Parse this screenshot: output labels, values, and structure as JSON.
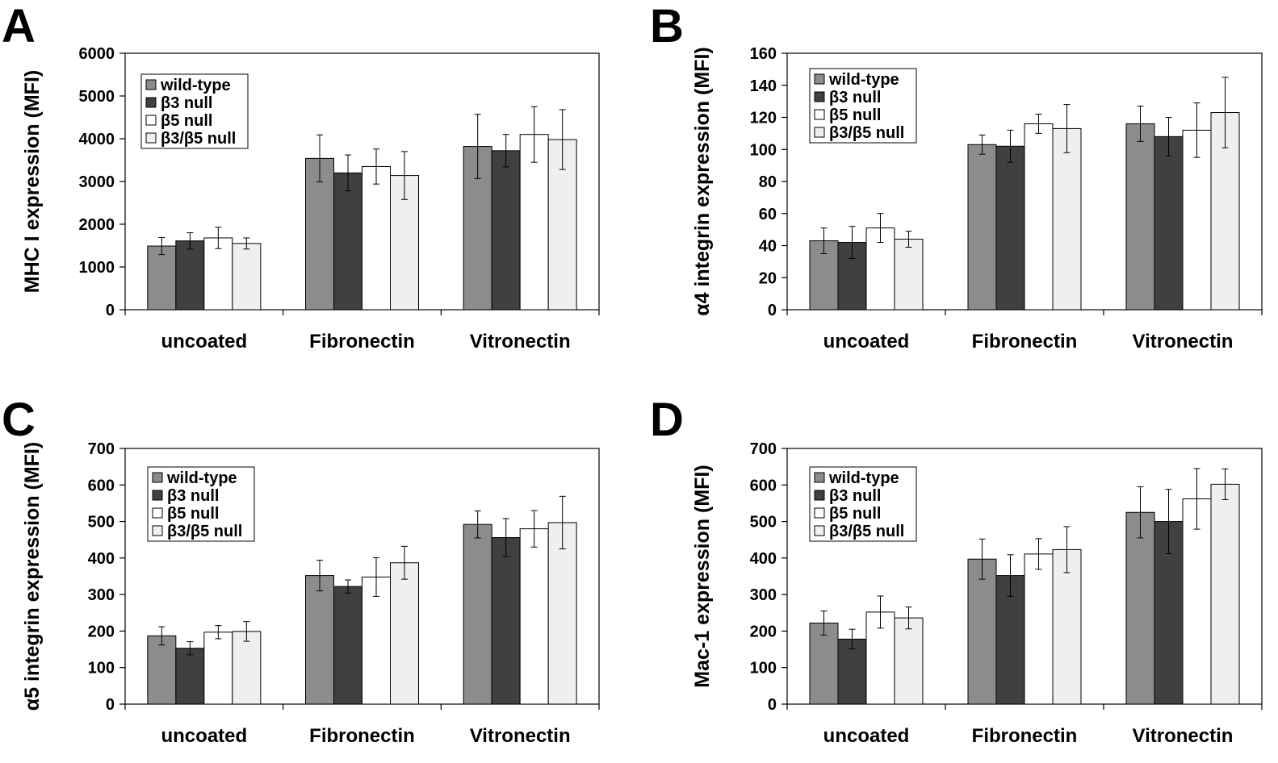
{
  "series_styles": [
    {
      "name": "wild-type",
      "fill": "#8c8c8c"
    },
    {
      "name": "β3 null",
      "fill": "#404040"
    },
    {
      "name": "β5 null",
      "fill": "#ffffff"
    },
    {
      "name": "β3/β5 null",
      "fill": "#efefef"
    }
  ],
  "chart_data": [
    {
      "panel": "A",
      "type": "bar",
      "categories": [
        "uncoated",
        "Fibronectin",
        "Vitronectin"
      ],
      "ylabel": "MHC I expression (MFI)",
      "ylim": [
        0,
        6000
      ],
      "yticks": [
        0,
        1000,
        2000,
        3000,
        4000,
        5000,
        6000
      ],
      "legend_position": "top-left",
      "series": [
        {
          "name": "wild-type",
          "values": [
            1490,
            3540,
            3820
          ],
          "errors": [
            200,
            550,
            750
          ]
        },
        {
          "name": "β3 null",
          "values": [
            1610,
            3200,
            3720
          ],
          "errors": [
            190,
            420,
            380
          ]
        },
        {
          "name": "β5 null",
          "values": [
            1680,
            3350,
            4100
          ],
          "errors": [
            250,
            410,
            650
          ]
        },
        {
          "name": "β3/β5 null",
          "values": [
            1550,
            3140,
            3980
          ],
          "errors": [
            130,
            560,
            700
          ]
        }
      ]
    },
    {
      "panel": "B",
      "type": "bar",
      "categories": [
        "uncoated",
        "Fibronectin",
        "Vitronectin"
      ],
      "ylabel": "α4 integrin expression (MFI)",
      "ylim": [
        0,
        160
      ],
      "yticks": [
        0,
        20,
        40,
        60,
        80,
        100,
        120,
        140,
        160
      ],
      "legend_position": "top-left",
      "series": [
        {
          "name": "wild-type",
          "values": [
            43,
            103,
            116
          ],
          "errors": [
            8,
            6,
            11
          ]
        },
        {
          "name": "β3 null",
          "values": [
            42,
            102,
            108
          ],
          "errors": [
            10,
            10,
            12
          ]
        },
        {
          "name": "β5 null",
          "values": [
            51,
            116,
            112
          ],
          "errors": [
            9,
            6,
            17
          ]
        },
        {
          "name": "β3/β5 null",
          "values": [
            44,
            113,
            123
          ],
          "errors": [
            5,
            15,
            22
          ]
        }
      ]
    },
    {
      "panel": "C",
      "type": "bar",
      "categories": [
        "uncoated",
        "Fibronectin",
        "Vitronectin"
      ],
      "ylabel": "α5 integrin expression (MFI)",
      "ylim": [
        0,
        700
      ],
      "yticks": [
        0,
        100,
        200,
        300,
        400,
        500,
        600,
        700
      ],
      "legend_position": "top-left",
      "series": [
        {
          "name": "wild-type",
          "values": [
            187,
            352,
            492
          ],
          "errors": [
            25,
            42,
            37
          ]
        },
        {
          "name": "β3 null",
          "values": [
            153,
            322,
            456
          ],
          "errors": [
            18,
            18,
            52
          ]
        },
        {
          "name": "β5 null",
          "values": [
            197,
            348,
            480
          ],
          "errors": [
            18,
            53,
            50
          ]
        },
        {
          "name": "β3/β5 null",
          "values": [
            199,
            387,
            497
          ],
          "errors": [
            27,
            45,
            72
          ]
        }
      ]
    },
    {
      "panel": "D",
      "type": "bar",
      "categories": [
        "uncoated",
        "Fibronectin",
        "Vitronectin"
      ],
      "ylabel": "Mac-1 expression (MFI)",
      "ylim": [
        0,
        700
      ],
      "yticks": [
        0,
        100,
        200,
        300,
        400,
        500,
        600,
        700
      ],
      "legend_position": "top-left",
      "series": [
        {
          "name": "wild-type",
          "values": [
            222,
            397,
            525
          ],
          "errors": [
            33,
            55,
            70
          ]
        },
        {
          "name": "β3 null",
          "values": [
            178,
            352,
            500
          ],
          "errors": [
            27,
            57,
            88
          ]
        },
        {
          "name": "β5 null",
          "values": [
            252,
            411,
            562
          ],
          "errors": [
            44,
            42,
            83
          ]
        },
        {
          "name": "β3/β5 null",
          "values": [
            236,
            423,
            602
          ],
          "errors": [
            30,
            63,
            42
          ]
        }
      ]
    }
  ]
}
